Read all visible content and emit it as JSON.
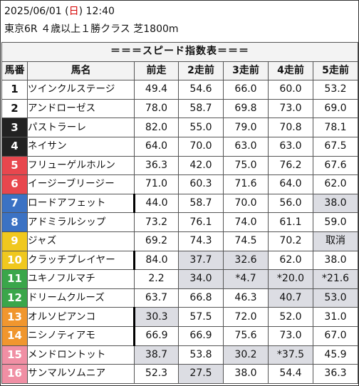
{
  "race": {
    "date": "2025/06/01",
    "weekday_open": " (",
    "weekday": "日",
    "weekday_close": ")",
    "time": " 12:40",
    "info": "東京6R ４歳以上１勝クラス 芝1800m"
  },
  "table": {
    "title": "＝＝＝スピード指数表＝＝＝",
    "headers": [
      "馬番",
      "馬名",
      "前走",
      "2走前",
      "3走前",
      "4走前",
      "5走前"
    ],
    "rows": [
      {
        "num": "1",
        "name": "ツインクルステージ",
        "bg": "#ffffff",
        "fg": "#111111",
        "mark": false,
        "vals": [
          "49.4",
          "54.6",
          "66.0",
          "60.0",
          "53.2"
        ],
        "hl": [
          false,
          false,
          false,
          false,
          false
        ]
      },
      {
        "num": "2",
        "name": "アンドローゼス",
        "bg": "#ffffff",
        "fg": "#111111",
        "mark": false,
        "vals": [
          "78.0",
          "58.7",
          "69.8",
          "73.0",
          "69.0"
        ],
        "hl": [
          false,
          false,
          false,
          false,
          false
        ]
      },
      {
        "num": "3",
        "name": "パストラーレ",
        "bg": "#222222",
        "fg": "#ffffff",
        "mark": false,
        "vals": [
          "82.0",
          "55.0",
          "79.0",
          "70.8",
          "78.1"
        ],
        "hl": [
          false,
          false,
          false,
          false,
          false
        ]
      },
      {
        "num": "4",
        "name": "ネイサン",
        "bg": "#222222",
        "fg": "#ffffff",
        "mark": false,
        "vals": [
          "64.0",
          "70.0",
          "63.0",
          "63.0",
          "67.5"
        ],
        "hl": [
          false,
          false,
          false,
          false,
          false
        ]
      },
      {
        "num": "5",
        "name": "フリューゲルホルン",
        "bg": "#e8474e",
        "fg": "#ffffff",
        "mark": false,
        "vals": [
          "36.3",
          "42.0",
          "75.0",
          "76.2",
          "67.6"
        ],
        "hl": [
          false,
          false,
          false,
          false,
          false
        ]
      },
      {
        "num": "6",
        "name": "イージーブリージー",
        "bg": "#e8474e",
        "fg": "#ffffff",
        "mark": false,
        "vals": [
          "71.0",
          "60.3",
          "71.6",
          "64.0",
          "62.0"
        ],
        "hl": [
          false,
          false,
          false,
          false,
          false
        ]
      },
      {
        "num": "7",
        "name": "ロードアフェット",
        "bg": "#3b72c4",
        "fg": "#ffffff",
        "mark": true,
        "vals": [
          "44.0",
          "58.7",
          "70.0",
          "56.0",
          "38.0"
        ],
        "hl": [
          false,
          false,
          false,
          false,
          true
        ]
      },
      {
        "num": "8",
        "name": "アドミラルシップ",
        "bg": "#3b72c4",
        "fg": "#ffffff",
        "mark": false,
        "vals": [
          "73.2",
          "76.1",
          "74.0",
          "61.1",
          "59.0"
        ],
        "hl": [
          false,
          false,
          false,
          false,
          false
        ]
      },
      {
        "num": "9",
        "name": "ジャズ",
        "bg": "#f0c81e",
        "fg": "#ffffff",
        "mark": false,
        "vals": [
          "69.2",
          "74.3",
          "74.5",
          "70.2",
          "取消"
        ],
        "hl": [
          false,
          false,
          false,
          false,
          true
        ]
      },
      {
        "num": "10",
        "name": "クラッチプレイヤー",
        "bg": "#f0c81e",
        "fg": "#ffffff",
        "mark": true,
        "vals": [
          "84.0",
          "37.7",
          "32.6",
          "62.0",
          "38.0"
        ],
        "hl": [
          false,
          true,
          true,
          false,
          false
        ]
      },
      {
        "num": "11",
        "name": "ユキノフルマチ",
        "bg": "#3aa64a",
        "fg": "#ffffff",
        "mark": false,
        "vals": [
          "2.2",
          "34.0",
          "*4.7",
          "*20.0",
          "*21.6"
        ],
        "hl": [
          false,
          true,
          true,
          true,
          true
        ]
      },
      {
        "num": "12",
        "name": "ドリームクルーズ",
        "bg": "#3aa64a",
        "fg": "#ffffff",
        "mark": false,
        "vals": [
          "63.7",
          "66.8",
          "46.3",
          "40.7",
          "53.0"
        ],
        "hl": [
          false,
          false,
          false,
          true,
          true
        ]
      },
      {
        "num": "13",
        "name": "オルソピアンコ",
        "bg": "#f0962e",
        "fg": "#ffffff",
        "mark": true,
        "vals": [
          "30.3",
          "57.5",
          "72.0",
          "52.0",
          "31.0"
        ],
        "hl": [
          true,
          false,
          false,
          false,
          false
        ]
      },
      {
        "num": "14",
        "name": "ニシノティアモ",
        "bg": "#f0962e",
        "fg": "#ffffff",
        "mark": true,
        "vals": [
          "66.9",
          "66.9",
          "75.6",
          "73.0",
          "67.0"
        ],
        "hl": [
          false,
          false,
          false,
          false,
          false
        ]
      },
      {
        "num": "15",
        "name": "メンドロントット",
        "bg": "#f08fa4",
        "fg": "#ffffff",
        "mark": false,
        "vals": [
          "38.7",
          "53.8",
          "30.2",
          "*37.5",
          "45.9"
        ],
        "hl": [
          true,
          false,
          true,
          true,
          false
        ]
      },
      {
        "num": "16",
        "name": "サンマルソムニア",
        "bg": "#f08fa4",
        "fg": "#ffffff",
        "mark": false,
        "vals": [
          "52.3",
          "27.5",
          "38.0",
          "54.4",
          "36.3"
        ],
        "hl": [
          false,
          true,
          false,
          false,
          false
        ]
      }
    ]
  }
}
